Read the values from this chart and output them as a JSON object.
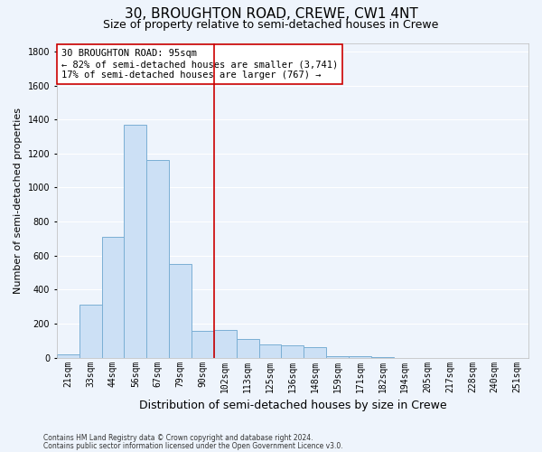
{
  "title_line1": "30, BROUGHTON ROAD, CREWE, CW1 4NT",
  "title_line2": "Size of property relative to semi-detached houses in Crewe",
  "xlabel": "Distribution of semi-detached houses by size in Crewe",
  "ylabel": "Number of semi-detached properties",
  "categories": [
    "21sqm",
    "33sqm",
    "44sqm",
    "56sqm",
    "67sqm",
    "79sqm",
    "90sqm",
    "102sqm",
    "113sqm",
    "125sqm",
    "136sqm",
    "148sqm",
    "159sqm",
    "171sqm",
    "182sqm",
    "194sqm",
    "205sqm",
    "217sqm",
    "228sqm",
    "240sqm",
    "251sqm"
  ],
  "values": [
    20,
    310,
    710,
    1370,
    1160,
    550,
    160,
    165,
    110,
    80,
    70,
    60,
    10,
    10,
    5,
    0,
    0,
    0,
    0,
    0,
    0
  ],
  "bar_color": "#cce0f5",
  "bar_edge_color": "#7aafd4",
  "vline_color": "#cc0000",
  "annotation_text": "30 BROUGHTON ROAD: 95sqm\n← 82% of semi-detached houses are smaller (3,741)\n17% of semi-detached houses are larger (767) →",
  "annotation_box_color": "#ffffff",
  "annotation_box_edge_color": "#cc0000",
  "ylim": [
    0,
    1850
  ],
  "yticks": [
    0,
    200,
    400,
    600,
    800,
    1000,
    1200,
    1400,
    1600,
    1800
  ],
  "footer_line1": "Contains HM Land Registry data © Crown copyright and database right 2024.",
  "footer_line2": "Contains public sector information licensed under the Open Government Licence v3.0.",
  "background_color": "#eef4fc",
  "grid_color": "#ffffff",
  "title_fontsize": 11,
  "subtitle_fontsize": 9,
  "tick_fontsize": 7,
  "ylabel_fontsize": 8,
  "xlabel_fontsize": 9,
  "annotation_fontsize": 7.5,
  "footer_fontsize": 5.5
}
